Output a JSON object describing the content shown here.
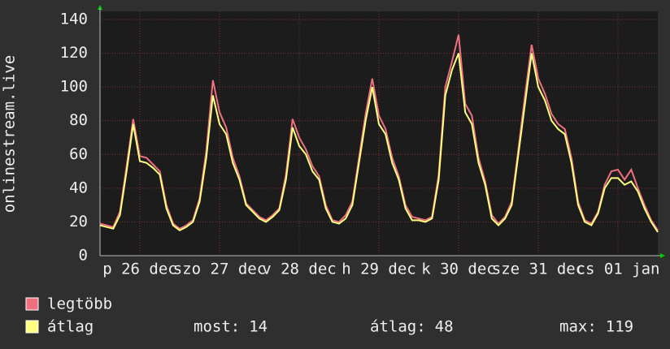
{
  "chart_data": {
    "type": "line",
    "y_label": "onlinestream.live",
    "xlim": [
      0,
      168
    ],
    "xticks": [
      {
        "value": 12,
        "label": "p 26 dec"
      },
      {
        "value": 36,
        "label": "szo 27 dec"
      },
      {
        "value": 60,
        "label": "v 28 dec"
      },
      {
        "value": 84,
        "label": "h 29 dec"
      },
      {
        "value": 108,
        "label": "k 30 dec"
      },
      {
        "value": 132,
        "label": "sze 31 dec"
      },
      {
        "value": 156,
        "label": "cs 01 jan"
      }
    ],
    "ylim": [
      0,
      140
    ],
    "yticks": [
      0,
      20,
      40,
      60,
      80,
      100,
      120,
      140
    ],
    "grid": true,
    "x": [
      0,
      2,
      4,
      6,
      8,
      10,
      12,
      14,
      16,
      18,
      20,
      22,
      24,
      26,
      28,
      30,
      32,
      34,
      36,
      38,
      40,
      42,
      44,
      46,
      48,
      50,
      52,
      54,
      56,
      58,
      60,
      62,
      64,
      66,
      68,
      70,
      72,
      74,
      76,
      78,
      80,
      82,
      84,
      86,
      88,
      90,
      92,
      94,
      96,
      98,
      100,
      102,
      104,
      106,
      108,
      110,
      112,
      114,
      116,
      118,
      120,
      122,
      124,
      126,
      128,
      130,
      132,
      134,
      136,
      138,
      140,
      142,
      144,
      146,
      148,
      150,
      152,
      154,
      156,
      158,
      160,
      162,
      164,
      166,
      168
    ],
    "series": [
      {
        "name": "legtöbb",
        "color": "#f07080",
        "values": [
          19,
          18,
          17,
          26,
          53,
          81,
          59,
          58,
          54,
          50,
          30,
          19,
          16,
          18,
          21,
          34,
          62,
          104,
          85,
          76,
          58,
          47,
          31,
          27,
          23,
          21,
          24,
          28,
          48,
          81,
          70,
          63,
          53,
          47,
          30,
          21,
          20,
          24,
          32,
          58,
          84,
          105,
          83,
          75,
          58,
          47,
          30,
          23,
          22,
          21,
          23,
          48,
          100,
          115,
          131,
          90,
          83,
          58,
          44,
          24,
          19,
          23,
          32,
          63,
          95,
          125,
          105,
          96,
          84,
          78,
          75,
          58,
          32,
          21,
          19,
          26,
          42,
          50,
          51,
          45,
          51,
          40,
          30,
          21,
          15
        ]
      },
      {
        "name": "átlag",
        "color": "#ffff80",
        "values": [
          18,
          17,
          16,
          24,
          50,
          78,
          56,
          55,
          52,
          48,
          28,
          18,
          15,
          17,
          20,
          32,
          58,
          95,
          78,
          72,
          55,
          45,
          30,
          26,
          22,
          20,
          23,
          27,
          45,
          76,
          65,
          60,
          50,
          45,
          28,
          20,
          19,
          22,
          30,
          55,
          80,
          100,
          78,
          72,
          55,
          45,
          28,
          21,
          21,
          20,
          22,
          45,
          95,
          110,
          120,
          85,
          78,
          55,
          42,
          22,
          18,
          22,
          30,
          60,
          90,
          120,
          100,
          92,
          80,
          75,
          72,
          55,
          30,
          20,
          18,
          25,
          40,
          46,
          46,
          42,
          44,
          38,
          28,
          20,
          14
        ]
      }
    ],
    "stats": [
      {
        "label": "most:",
        "value": 14
      },
      {
        "label": "átlag:",
        "value": 48
      },
      {
        "label": "max:",
        "value": 119
      }
    ]
  }
}
